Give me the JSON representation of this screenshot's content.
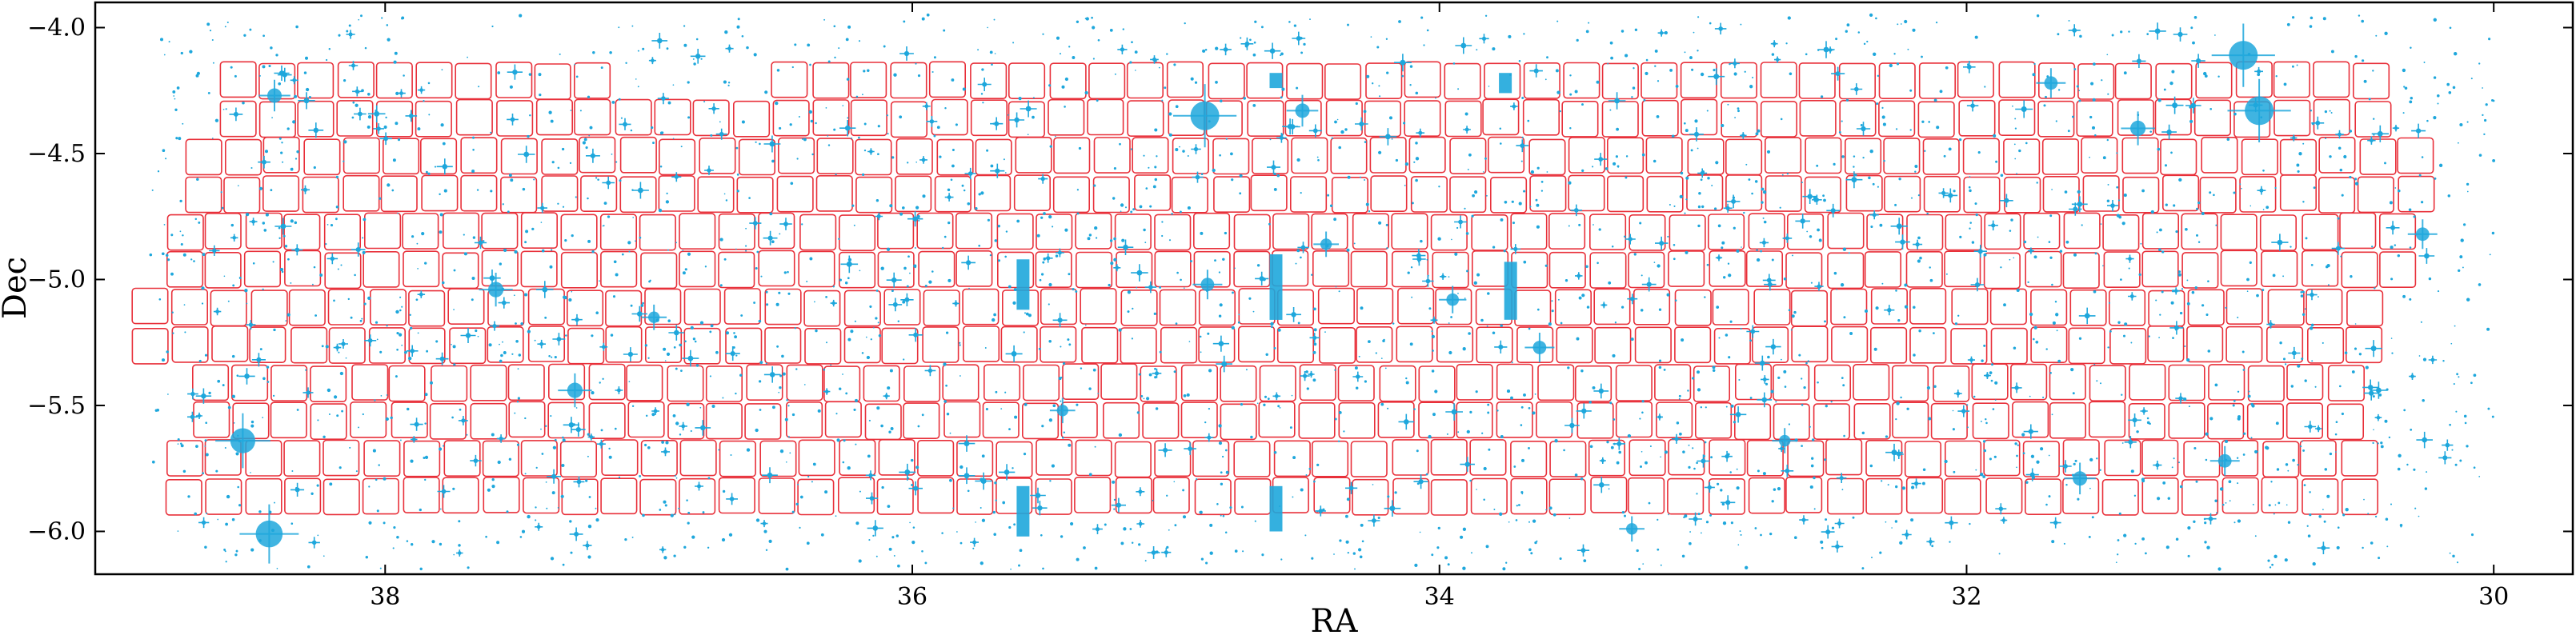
{
  "chart_data": {
    "type": "scatter",
    "title": "",
    "xlabel": "RA",
    "ylabel": "Dec",
    "xlim": [
      39.1,
      29.7
    ],
    "ylim": [
      -6.17,
      -3.9
    ],
    "x_inverted": true,
    "grid": false,
    "xticks": [
      38,
      36,
      34,
      32,
      30
    ],
    "xtick_labels": [
      "38",
      "36",
      "34",
      "32",
      "30"
    ],
    "yticks": [
      -4.0,
      -4.5,
      -5.0,
      -5.5,
      -6.0
    ],
    "ytick_labels": [
      "−4.0",
      "−4.5",
      "−5.0",
      "−5.5",
      "−6.0"
    ],
    "colors": {
      "stars": "#1ea7dc",
      "fields": "#e8303a",
      "frame": "#000000"
    },
    "series": [
      {
        "kind": "field-footprints",
        "rows": [
          {
            "dec": -4.21,
            "segments": [
              {
                "ra_start": 38.63,
                "ra_end": 37.1
              },
              {
                "ra_start": 36.53,
                "ra_end": 30.37
              }
            ]
          },
          {
            "dec": -4.36,
            "segments": [
              {
                "ra_start": 38.63,
                "ra_end": 30.37
              }
            ]
          },
          {
            "dec": -4.51,
            "segments": [
              {
                "ra_start": 38.76,
                "ra_end": 30.21
              }
            ]
          },
          {
            "dec": -4.66,
            "segments": [
              {
                "ra_start": 38.76,
                "ra_end": 30.21
              }
            ]
          },
          {
            "dec": -4.81,
            "segments": [
              {
                "ra_start": 38.83,
                "ra_end": 30.27
              }
            ]
          },
          {
            "dec": -4.96,
            "segments": [
              {
                "ra_start": 38.83,
                "ra_end": 30.27
              }
            ]
          },
          {
            "dec": -5.11,
            "segments": [
              {
                "ra_start": 38.96,
                "ra_end": 30.29
              }
            ]
          },
          {
            "dec": -5.26,
            "segments": [
              {
                "ra_start": 38.96,
                "ra_end": 30.29
              }
            ]
          },
          {
            "dec": -5.41,
            "segments": [
              {
                "ra_start": 38.73,
                "ra_end": 30.36
              }
            ]
          },
          {
            "dec": -5.56,
            "segments": [
              {
                "ra_start": 38.73,
                "ra_end": 30.36
              }
            ]
          },
          {
            "dec": -5.71,
            "segments": [
              {
                "ra_start": 38.83,
                "ra_end": 30.37
              }
            ]
          },
          {
            "dec": -5.86,
            "segments": [
              {
                "ra_start": 38.83,
                "ra_end": 30.37
              }
            ]
          }
        ]
      },
      {
        "kind": "bright-stars",
        "points": [
          {
            "ra": 30.95,
            "dec": -4.11,
            "size": 3.0
          },
          {
            "ra": 30.89,
            "dec": -4.33,
            "size": 3.0
          },
          {
            "ra": 34.89,
            "dec": -4.35,
            "size": 3.0
          },
          {
            "ra": 38.54,
            "dec": -5.64,
            "size": 2.6
          },
          {
            "ra": 38.44,
            "dec": -6.01,
            "size": 2.8
          },
          {
            "ra": 38.42,
            "dec": -4.27,
            "size": 1.5
          },
          {
            "ra": 37.58,
            "dec": -5.04,
            "size": 1.6
          },
          {
            "ra": 37.28,
            "dec": -5.44,
            "size": 1.6
          },
          {
            "ra": 34.52,
            "dec": -4.33,
            "size": 1.5
          },
          {
            "ra": 31.35,
            "dec": -4.4,
            "size": 1.6
          },
          {
            "ra": 31.68,
            "dec": -4.22,
            "size": 1.4
          },
          {
            "ra": 30.27,
            "dec": -4.82,
            "size": 1.4
          },
          {
            "ra": 31.57,
            "dec": -5.79,
            "size": 1.5
          },
          {
            "ra": 31.02,
            "dec": -5.72,
            "size": 1.4
          },
          {
            "ra": 34.88,
            "dec": -5.02,
            "size": 1.4
          },
          {
            "ra": 33.62,
            "dec": -5.27,
            "size": 1.4
          },
          {
            "ra": 33.95,
            "dec": -5.08,
            "size": 1.3
          },
          {
            "ra": 35.43,
            "dec": -5.52,
            "size": 1.2
          },
          {
            "ra": 36.98,
            "dec": -5.15,
            "size": 1.2
          },
          {
            "ra": 33.27,
            "dec": -5.99,
            "size": 1.2
          },
          {
            "ra": 32.69,
            "dec": -5.64,
            "size": 1.2
          },
          {
            "ra": 34.43,
            "dec": -4.86,
            "size": 1.2
          }
        ]
      },
      {
        "kind": "saturation-trails",
        "segments": [
          {
            "ra": 35.58,
            "dec_top": -4.92,
            "dec_bottom": -5.12
          },
          {
            "ra": 35.58,
            "dec_top": -5.82,
            "dec_bottom": -6.02
          },
          {
            "ra": 34.62,
            "dec_top": -4.9,
            "dec_bottom": -5.16
          },
          {
            "ra": 34.62,
            "dec_top": -5.82,
            "dec_bottom": -6.0
          },
          {
            "ra": 34.62,
            "dec_top": -4.18,
            "dec_bottom": -4.24
          },
          {
            "ra": 33.73,
            "dec_top": -4.93,
            "dec_bottom": -5.16
          },
          {
            "ra": 33.75,
            "dec_top": -4.18,
            "dec_bottom": -4.26
          }
        ]
      }
    ]
  }
}
